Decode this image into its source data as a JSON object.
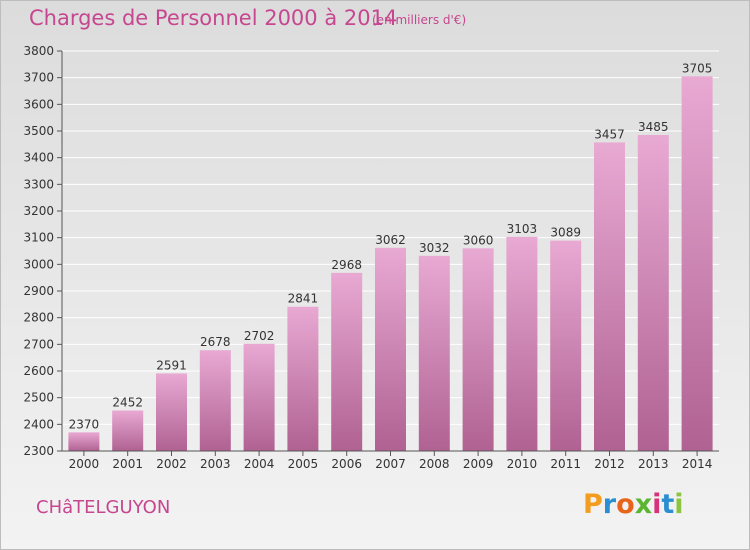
{
  "header": {
    "title": "Charges de Personnel 2000 à 2014",
    "unit": "(en milliers d'€)"
  },
  "footer": {
    "city": "CHâTELGUYON",
    "logo": {
      "letters": [
        "P",
        "r",
        "o",
        "x",
        "i",
        "t",
        "i"
      ],
      "colors": [
        "#f39c1e",
        "#2a8fd0",
        "#e8641b",
        "#5bb531",
        "#d6337a",
        "#2a8fd0",
        "#8bc53f"
      ]
    }
  },
  "colors": {
    "accent": "#c6478f",
    "bar_top": "#e8a9d3",
    "bar_bottom": "#b06292",
    "axis": "#555555",
    "grid": "#ffffff"
  },
  "chart_data": {
    "type": "bar",
    "categories": [
      "2000",
      "2001",
      "2002",
      "2003",
      "2004",
      "2005",
      "2006",
      "2007",
      "2008",
      "2009",
      "2010",
      "2011",
      "2012",
      "2013",
      "2014"
    ],
    "values": [
      2370,
      2452,
      2591,
      2678,
      2702,
      2841,
      2968,
      3062,
      3032,
      3060,
      3103,
      3089,
      3457,
      3485,
      3705
    ],
    "ylim": [
      2300,
      3800
    ],
    "yticks": [
      2300,
      2400,
      2500,
      2600,
      2700,
      2800,
      2900,
      3000,
      3100,
      3200,
      3300,
      3400,
      3500,
      3600,
      3700,
      3800
    ],
    "grid": true,
    "data_labels": true
  }
}
